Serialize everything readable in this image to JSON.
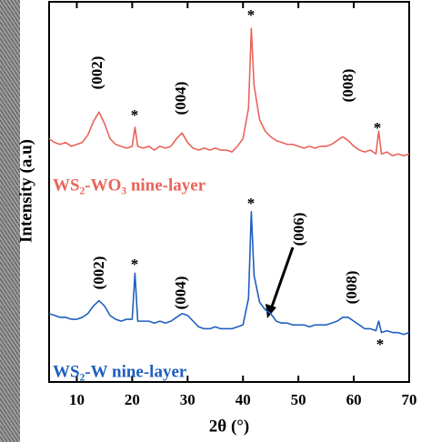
{
  "chart_data": {
    "type": "line",
    "xlabel": "2θ (°)",
    "ylabel": "Intensity (a.u)",
    "x": [
      5,
      6,
      7,
      8,
      9,
      10,
      11,
      12,
      13,
      14,
      15,
      16,
      17,
      18,
      19,
      20,
      20.5,
      21,
      22,
      23,
      24,
      25,
      26,
      27,
      28,
      29,
      30,
      31,
      32,
      33,
      34,
      35,
      36,
      37,
      38,
      39,
      40,
      41,
      41.5,
      42,
      43,
      44,
      45,
      46,
      47,
      48,
      49,
      50,
      51,
      52,
      53,
      54,
      55,
      56,
      57,
      58,
      59,
      60,
      61,
      62,
      63,
      64,
      64.5,
      65,
      66,
      67,
      68,
      69,
      70
    ],
    "xlim": [
      5,
      70
    ],
    "xticks": [
      10,
      20,
      30,
      40,
      50,
      60,
      70
    ],
    "ylim": [
      0,
      100
    ],
    "series": [
      {
        "name": "WS₂-WO₃ nine-layer",
        "color": "#e8645a",
        "values": [
          64,
          63,
          62.5,
          63,
          62,
          62.5,
          63,
          65,
          68.5,
          71,
          68,
          64,
          62.5,
          62,
          61.5,
          62,
          67,
          62,
          61.5,
          62,
          61,
          62,
          61.5,
          62,
          64,
          65.5,
          63,
          61.5,
          61,
          61.5,
          61,
          61.5,
          61,
          61,
          60.5,
          62,
          64,
          72,
          93,
          78,
          69,
          66,
          64.5,
          63.5,
          63,
          62.5,
          62.5,
          62,
          61.5,
          62,
          61.5,
          62,
          62,
          62.5,
          63.5,
          64.5,
          63.5,
          62,
          61,
          60.5,
          61,
          60,
          66,
          60,
          60.5,
          59.5,
          60,
          59.5,
          60
        ]
      },
      {
        "name": "WS₂-W nine-layer",
        "color": "#1f5fbf",
        "values": [
          18,
          17.5,
          17,
          17,
          16.5,
          16.5,
          17,
          18,
          20,
          21.4,
          20,
          17.5,
          16.5,
          16,
          16.5,
          16.5,
          28.6,
          16,
          16,
          16,
          15.5,
          16,
          15.5,
          16,
          17,
          18,
          17.5,
          16,
          14.5,
          14,
          14,
          14.5,
          14,
          14,
          14,
          14.5,
          15,
          22,
          44.8,
          28,
          21,
          19,
          18,
          16,
          15.5,
          15.5,
          15,
          15,
          15,
          14.5,
          15,
          15,
          15,
          15.5,
          16,
          17,
          17,
          16,
          15,
          14,
          14,
          13.5,
          16,
          13,
          13.5,
          13,
          13,
          12.5,
          13
        ]
      }
    ],
    "annotations": [
      "(002)",
      "*",
      "(004)",
      "*",
      "(008)",
      "*",
      "(002)",
      "*",
      "(004)",
      "*",
      "(006)",
      "(008)",
      "*"
    ]
  }
}
